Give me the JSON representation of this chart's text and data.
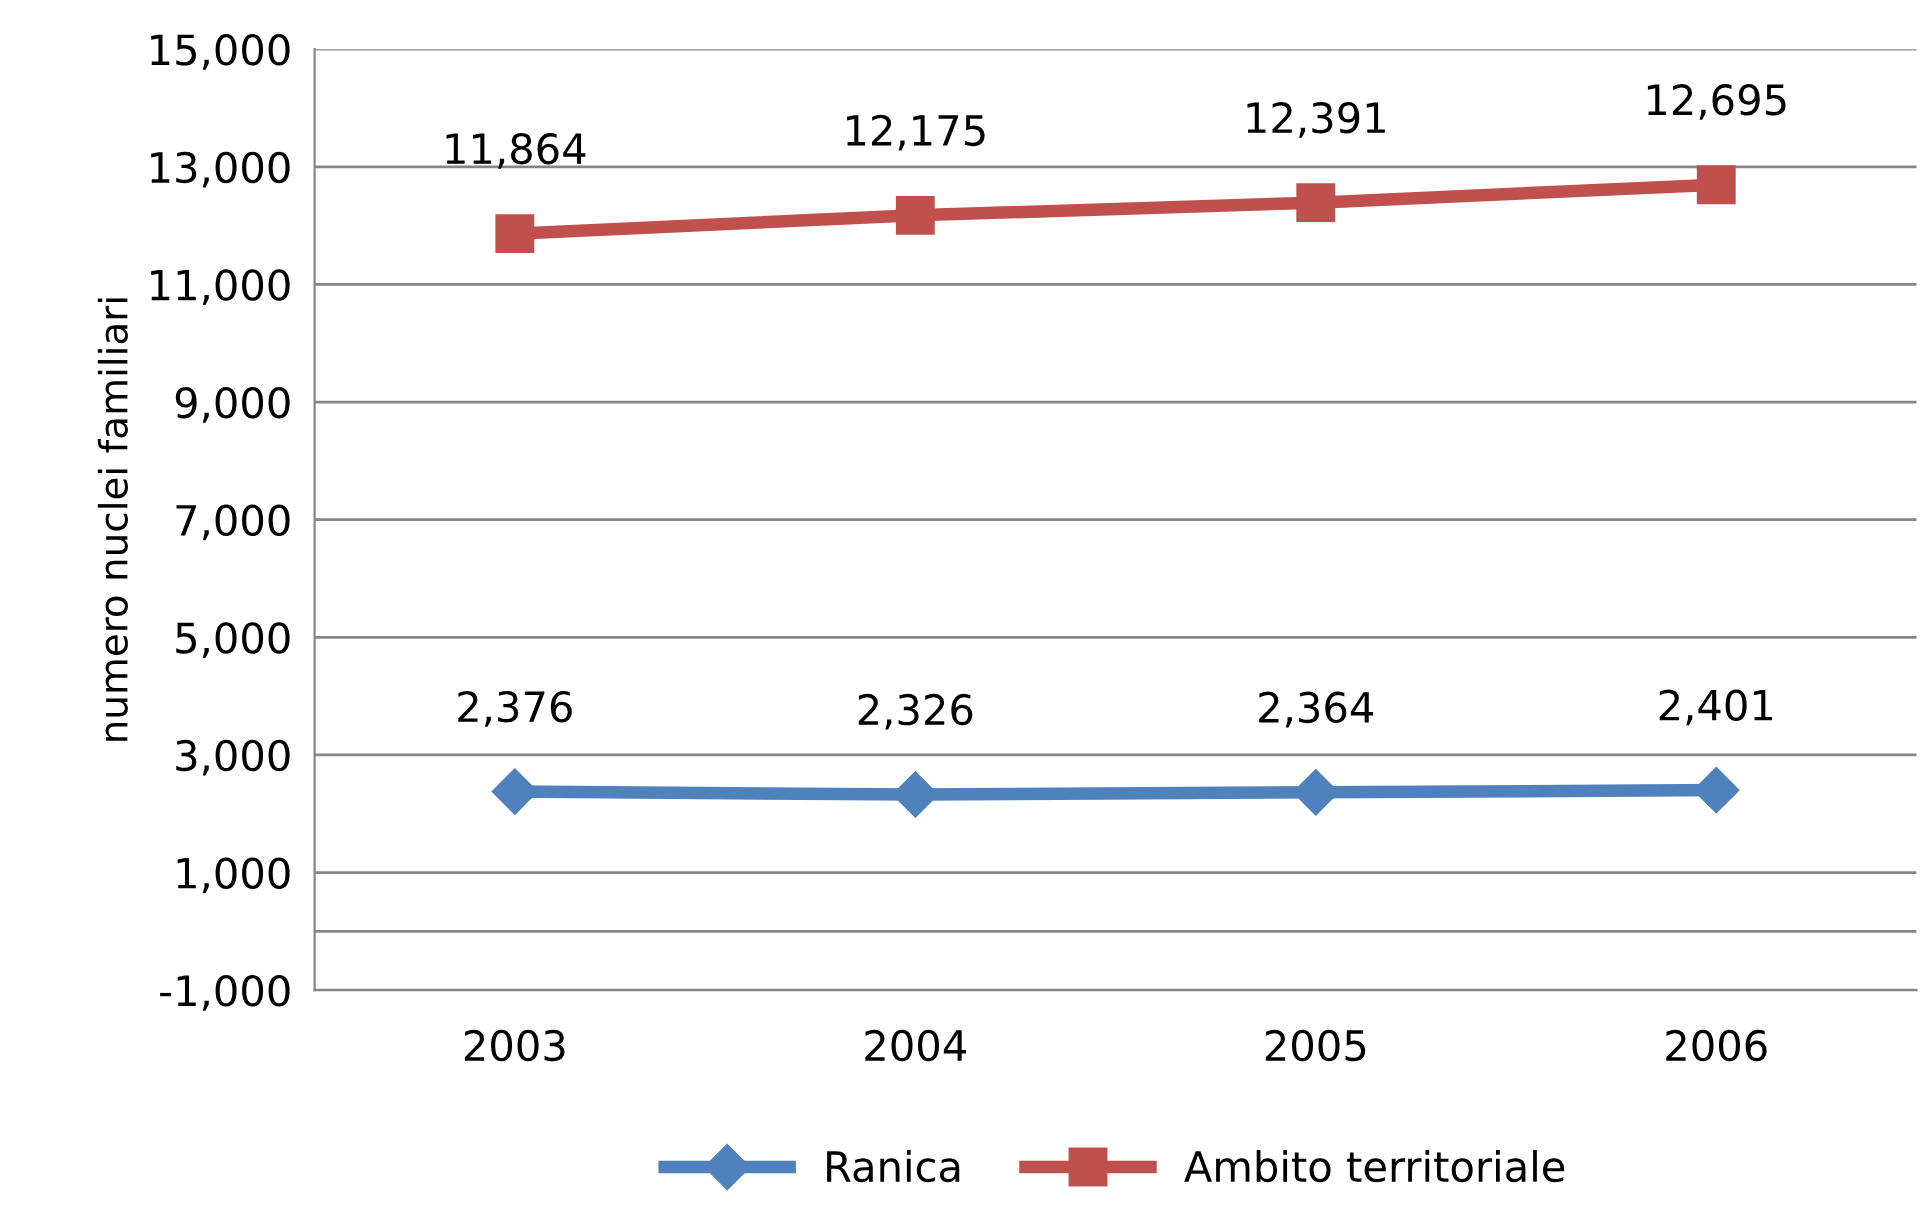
{
  "chart_data": {
    "type": "line",
    "ylabel": "numero nuclei familiari",
    "categories": [
      "2003",
      "2004",
      "2005",
      "2006"
    ],
    "series": [
      {
        "name": "Ranica",
        "color": "#4f81bd",
        "marker": "diamond",
        "values": [
          2376,
          2326,
          2364,
          2401
        ],
        "value_labels": [
          "2,376",
          "2,326",
          "2,364",
          "2,401"
        ]
      },
      {
        "name": "Ambito territoriale",
        "color": "#c0504d",
        "marker": "square",
        "values": [
          11864,
          12175,
          12391,
          12695
        ],
        "value_labels": [
          "11,864",
          "12,175",
          "12,391",
          "12,695"
        ]
      }
    ],
    "ylim": [
      -1000,
      15000
    ],
    "yticks": [
      {
        "value": -1000,
        "label": "-1,000"
      },
      {
        "value": 1000,
        "label": "1,000"
      },
      {
        "value": 3000,
        "label": "3,000"
      },
      {
        "value": 5000,
        "label": "5,000"
      },
      {
        "value": 7000,
        "label": "7,000"
      },
      {
        "value": 9000,
        "label": "9,000"
      },
      {
        "value": 11000,
        "label": "11,000"
      },
      {
        "value": 13000,
        "label": "13,000"
      },
      {
        "value": 15000,
        "label": "15,000"
      }
    ],
    "ref_lines": [
      {
        "axis": "y",
        "value": 0,
        "label": null,
        "color": "#868686"
      }
    ],
    "grid": "y",
    "legend": "bottom",
    "line_style": "solid"
  }
}
